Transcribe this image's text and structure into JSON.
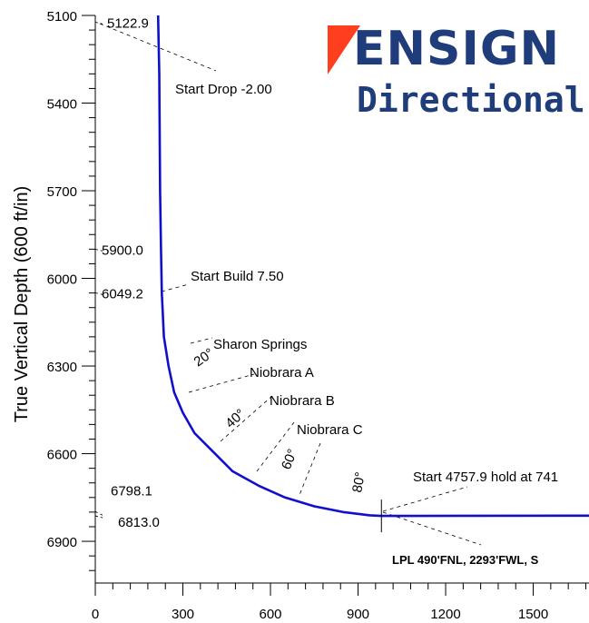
{
  "chart_data": {
    "type": "line",
    "ylabel": "True Vertical Depth (600 ft/in)",
    "xlabel": "",
    "x_ticks": [
      0,
      300,
      600,
      900,
      1200,
      1500
    ],
    "y_ticks": [
      5100,
      5400,
      5700,
      6000,
      6300,
      6600,
      6900
    ],
    "xlim": [
      0,
      1700
    ],
    "ylim": [
      5100,
      7050
    ],
    "y_inverted": true,
    "series": [
      {
        "x": [
          215,
          219,
          222,
          225,
          228,
          235,
          251,
          270,
          300,
          340,
          400,
          470,
          560,
          650,
          750,
          850,
          940,
          980,
          1100,
          1300,
          1700
        ],
        "y": [
          5100,
          5300,
          5700,
          5900,
          6050,
          6200,
          6300,
          6390,
          6460,
          6530,
          6590,
          6660,
          6710,
          6750,
          6780,
          6800,
          6811,
          6813,
          6813,
          6812.5,
          6812
        ]
      }
    ],
    "md_labels_left": [
      {
        "text": "5122.9",
        "y": 5122.9
      },
      {
        "text": "5900.0",
        "y": 5900.0
      },
      {
        "text": "6049.2",
        "y": 6049.2
      },
      {
        "text": "6798.1",
        "y": 6798.1
      },
      {
        "text": "6813.0",
        "y": 6813.0
      }
    ],
    "annotations": [
      {
        "text": "Start Drop -2.00"
      },
      {
        "text": "Start Build 7.50"
      },
      {
        "text": "Start 4757.9 hold at 741"
      },
      {
        "text": "LPL 490'FNL, 2293'FWL, S"
      }
    ],
    "formations": [
      {
        "text": "Sharon Springs"
      },
      {
        "text": "Niobrara A"
      },
      {
        "text": "Niobrara B"
      },
      {
        "text": "Niobrara C"
      }
    ],
    "inclination_labels": [
      {
        "text": "20°",
        "x": 290,
        "y": 6385
      },
      {
        "text": "40°",
        "x": 490,
        "y": 6600
      },
      {
        "text": "60°",
        "x": 690,
        "y": 6720
      },
      {
        "text": "80°",
        "x": 880,
        "y": 6790
      }
    ]
  },
  "logo": {
    "word1": "ENSIGN",
    "word2": "Directional"
  },
  "colors": {
    "curve": "#1010cc",
    "logo_blue": "#1f3d7a",
    "logo_red": "#ff3d1f"
  }
}
